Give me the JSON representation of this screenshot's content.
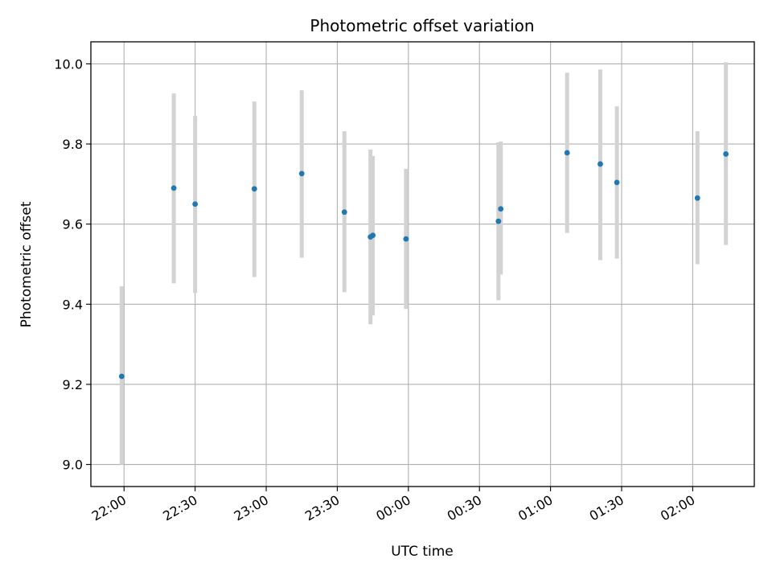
{
  "chart_data": {
    "type": "scatter",
    "title": "Photometric offset variation",
    "xlabel": "UTC time",
    "ylabel": "Photometric offset",
    "x_ticks": [
      "22:00",
      "22:30",
      "23:00",
      "23:30",
      "00:00",
      "00:30",
      "01:00",
      "01:30",
      "02:00"
    ],
    "y_ticks": [
      "9.0",
      "9.2",
      "9.4",
      "9.6",
      "9.8",
      "10.0"
    ],
    "ylim": [
      8.945,
      10.055
    ],
    "xlim": [
      "21:46",
      "02:26"
    ],
    "grid": true,
    "marker_color": "#1f77b4",
    "errorbar_color": "#d3d3d3",
    "points": [
      {
        "time": "21:59",
        "y": 9.22,
        "y_low": 9.0,
        "y_high": 9.445
      },
      {
        "time": "22:21",
        "y": 9.69,
        "y_low": 9.452,
        "y_high": 9.926
      },
      {
        "time": "22:30",
        "y": 9.65,
        "y_low": 9.428,
        "y_high": 9.87
      },
      {
        "time": "22:55",
        "y": 9.688,
        "y_low": 9.468,
        "y_high": 9.906
      },
      {
        "time": "23:15",
        "y": 9.726,
        "y_low": 9.516,
        "y_high": 9.934
      },
      {
        "time": "23:33",
        "y": 9.63,
        "y_low": 9.43,
        "y_high": 9.832
      },
      {
        "time": "23:44",
        "y": 9.568,
        "y_low": 9.35,
        "y_high": 9.786
      },
      {
        "time": "23:45",
        "y": 9.572,
        "y_low": 9.372,
        "y_high": 9.77
      },
      {
        "time": "23:59",
        "y": 9.563,
        "y_low": 9.388,
        "y_high": 9.738
      },
      {
        "time": "00:38",
        "y": 9.607,
        "y_low": 9.41,
        "y_high": 9.804
      },
      {
        "time": "00:39",
        "y": 9.638,
        "y_low": 9.474,
        "y_high": 9.806
      },
      {
        "time": "01:07",
        "y": 9.778,
        "y_low": 9.578,
        "y_high": 9.978
      },
      {
        "time": "01:21",
        "y": 9.75,
        "y_low": 9.51,
        "y_high": 9.986
      },
      {
        "time": "01:28",
        "y": 9.704,
        "y_low": 9.514,
        "y_high": 9.894
      },
      {
        "time": "02:02",
        "y": 9.665,
        "y_low": 9.5,
        "y_high": 9.832
      },
      {
        "time": "02:14",
        "y": 9.775,
        "y_low": 9.548,
        "y_high": 10.004
      }
    ]
  }
}
